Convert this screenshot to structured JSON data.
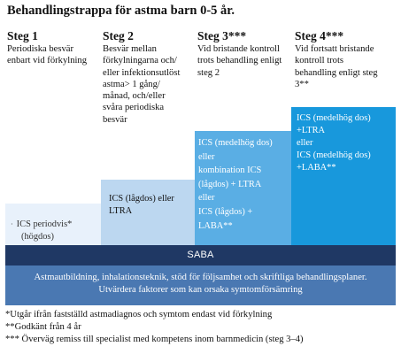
{
  "title": "Behandlingstrappa för astma barn 0-5 år.",
  "steps": [
    {
      "heading": "Steg 1",
      "desc": [
        "Periodiska besvär",
        "enbart vid förkylning"
      ],
      "box_lines": [
        "ICS periodvis*",
        "(högdos)"
      ]
    },
    {
      "heading": "Steg 2",
      "desc": [
        "Besvär mellan",
        "förkylningarna och/",
        "eller infektionsutlöst",
        "astma> 1 gång/",
        "månad, och/eller",
        "svåra periodiska",
        "besvär"
      ],
      "box_lines": [
        "ICS (lågdos) eller",
        "LTRA"
      ]
    },
    {
      "heading": "Steg 3***",
      "desc": [
        "Vid bristande kontroll",
        "trots behandling enligt",
        "steg 2"
      ],
      "box_lines": [
        "ICS (medelhög dos)",
        "eller",
        "kombination ICS",
        "(lågdos) + LTRA",
        "eller",
        "ICS (lågdos) +",
        "LABA**"
      ]
    },
    {
      "heading": "Steg 4***",
      "desc": [
        "Vid fortsatt bristande",
        "kontroll trots",
        "behandling enligt steg",
        "3**"
      ],
      "box_lines": [
        "ICS (medelhög dos)",
        "+LTRA",
        "eller",
        "ICS (medelhög dos)",
        "+LABA**"
      ]
    }
  ],
  "saba": "SABA",
  "education": [
    "Astmautbildning, inhalationsteknik, stöd för följsamhet och skriftliga behandlingsplaner.",
    "Utvärdera faktorer som kan orsaka symtomförsämring"
  ],
  "footnotes": [
    "*Utgår ifrån fastställd astmadiagnos och symtom endast vid förkylning",
    "**Godkänt från 4 år",
    "*** Överväg remiss till specialist med kompetens inom barnmedicin (steg 3–4)"
  ],
  "colors": {
    "step1_box": "#e8f1fb",
    "step2_box": "#bcd7f0",
    "step3_box": "#5aaee4",
    "step4_box": "#1898dc",
    "saba_bar": "#1f3864",
    "education_bar": "#4a78b2"
  }
}
